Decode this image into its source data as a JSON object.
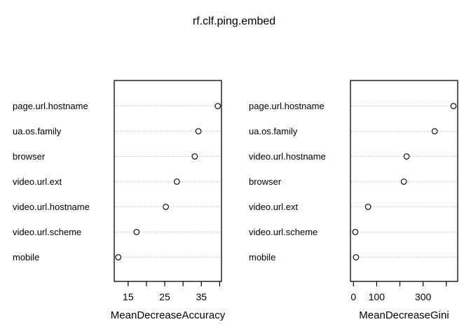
{
  "title": "rf.clf.ping.embed",
  "colors": {
    "background": "#ffffff",
    "foreground": "#000000",
    "gridline": "#bcbcbc",
    "point_fill": "#ffffff",
    "point_stroke": "#000000"
  },
  "chart_data": [
    {
      "type": "scatter",
      "subtype": "dotchart",
      "title": "",
      "xlabel": "MeanDecreaseAccuracy",
      "ylabel": "",
      "xlim": [
        11.2,
        40.5
      ],
      "xticks": [
        15,
        20,
        25,
        30,
        35,
        40
      ],
      "xtick_labels": [
        "15",
        "",
        "25",
        "",
        "35",
        ""
      ],
      "grid": true,
      "legend": "none",
      "categories": [
        "page.url.hostname",
        "ua.os.family",
        "browser",
        "video.url.ext",
        "video.url.hostname",
        "video.url.scheme",
        "mobile"
      ],
      "values": [
        39.5,
        34.2,
        33.2,
        28.3,
        25.3,
        17.3,
        12.3
      ]
    },
    {
      "type": "scatter",
      "subtype": "dotchart",
      "title": "",
      "xlabel": "MeanDecreaseGini",
      "ylabel": "",
      "xlim": [
        -13,
        449
      ],
      "xticks": [
        0,
        100,
        200,
        300,
        400
      ],
      "xtick_labels": [
        "0",
        "100",
        "",
        "300",
        ""
      ],
      "grid": true,
      "legend": "none",
      "categories": [
        "page.url.hostname",
        "ua.os.family",
        "video.url.hostname",
        "browser",
        "video.url.ext",
        "video.url.scheme",
        "mobile"
      ],
      "values": [
        431,
        350,
        229,
        217,
        63,
        8,
        11
      ]
    }
  ]
}
